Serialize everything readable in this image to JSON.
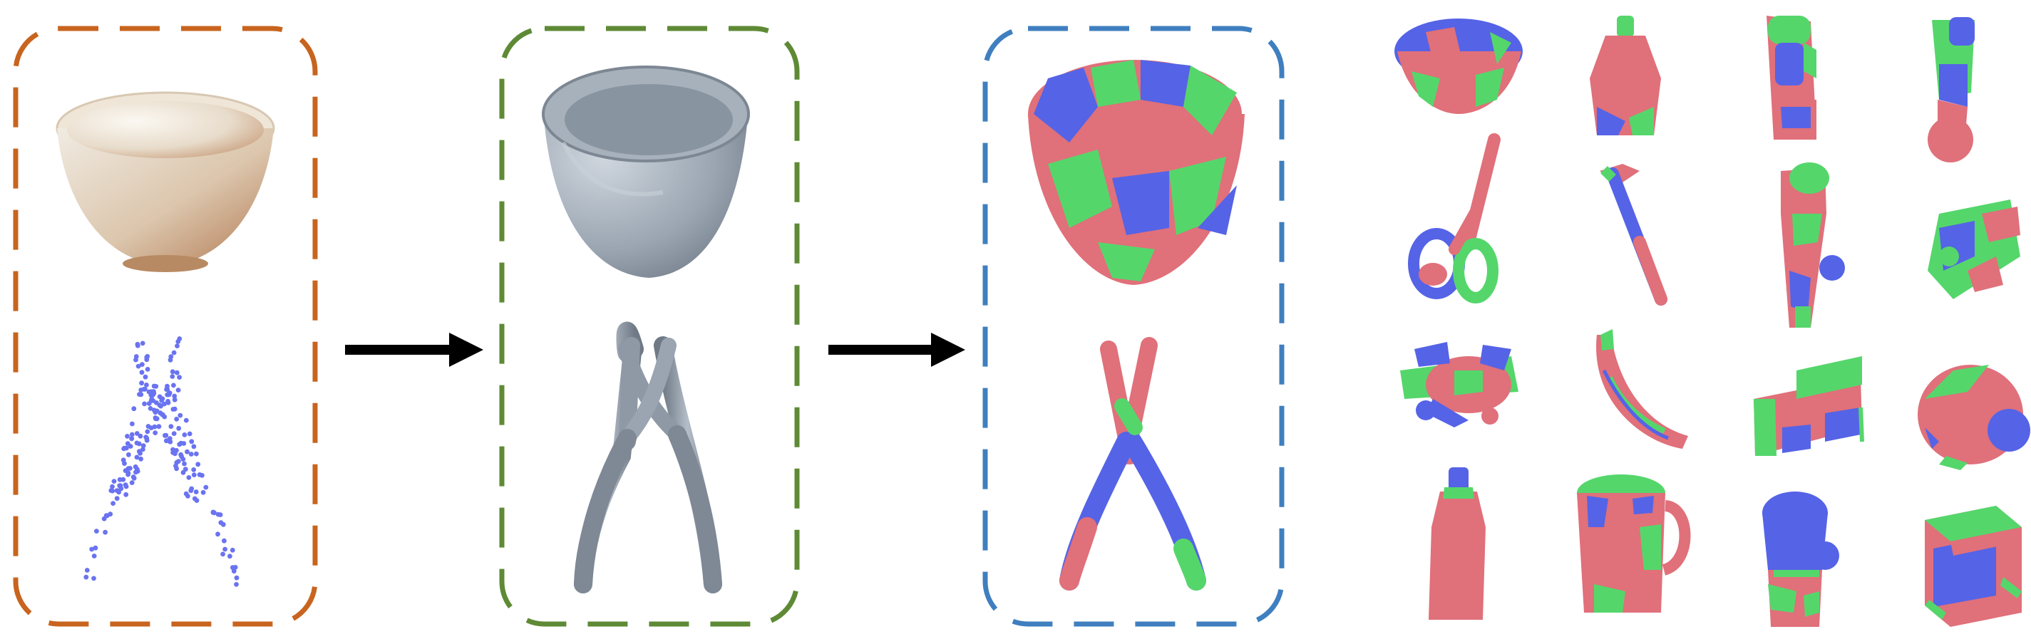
{
  "colors": {
    "input_frame": "#c8641e",
    "reconstruction_frame": "#5e8a35",
    "affordance_frame": "#3f7fbf",
    "arrow": "#000000",
    "part_red": "#e0707a",
    "part_green": "#55d66b",
    "part_blue": "#5563e6",
    "mesh_gray": "#8f9aa6",
    "point_blue": "#6a73f0"
  },
  "panels": [
    {
      "name": "input-panel",
      "content": [
        "cup-photo",
        "pliers-point-cloud"
      ]
    },
    {
      "name": "reconstruction-panel",
      "content": [
        "bowl-mesh",
        "pliers-mesh"
      ]
    },
    {
      "name": "segmentation-panel",
      "content": [
        "segmented-bowl",
        "segmented-pliers"
      ]
    }
  ],
  "arrows": [
    "input-to-reconstruction",
    "reconstruction-to-segmentation"
  ],
  "gallery": {
    "rows": 4,
    "columns": 4,
    "objects": [
      "bowl",
      "bottle",
      "faucet",
      "nozzle",
      "scissors",
      "hammer",
      "hair-dryer",
      "power-drill",
      "toy-airplane",
      "banana",
      "camera",
      "wheel-assembly",
      "spray-bottle",
      "mug",
      "flashlight",
      "toaster"
    ]
  }
}
